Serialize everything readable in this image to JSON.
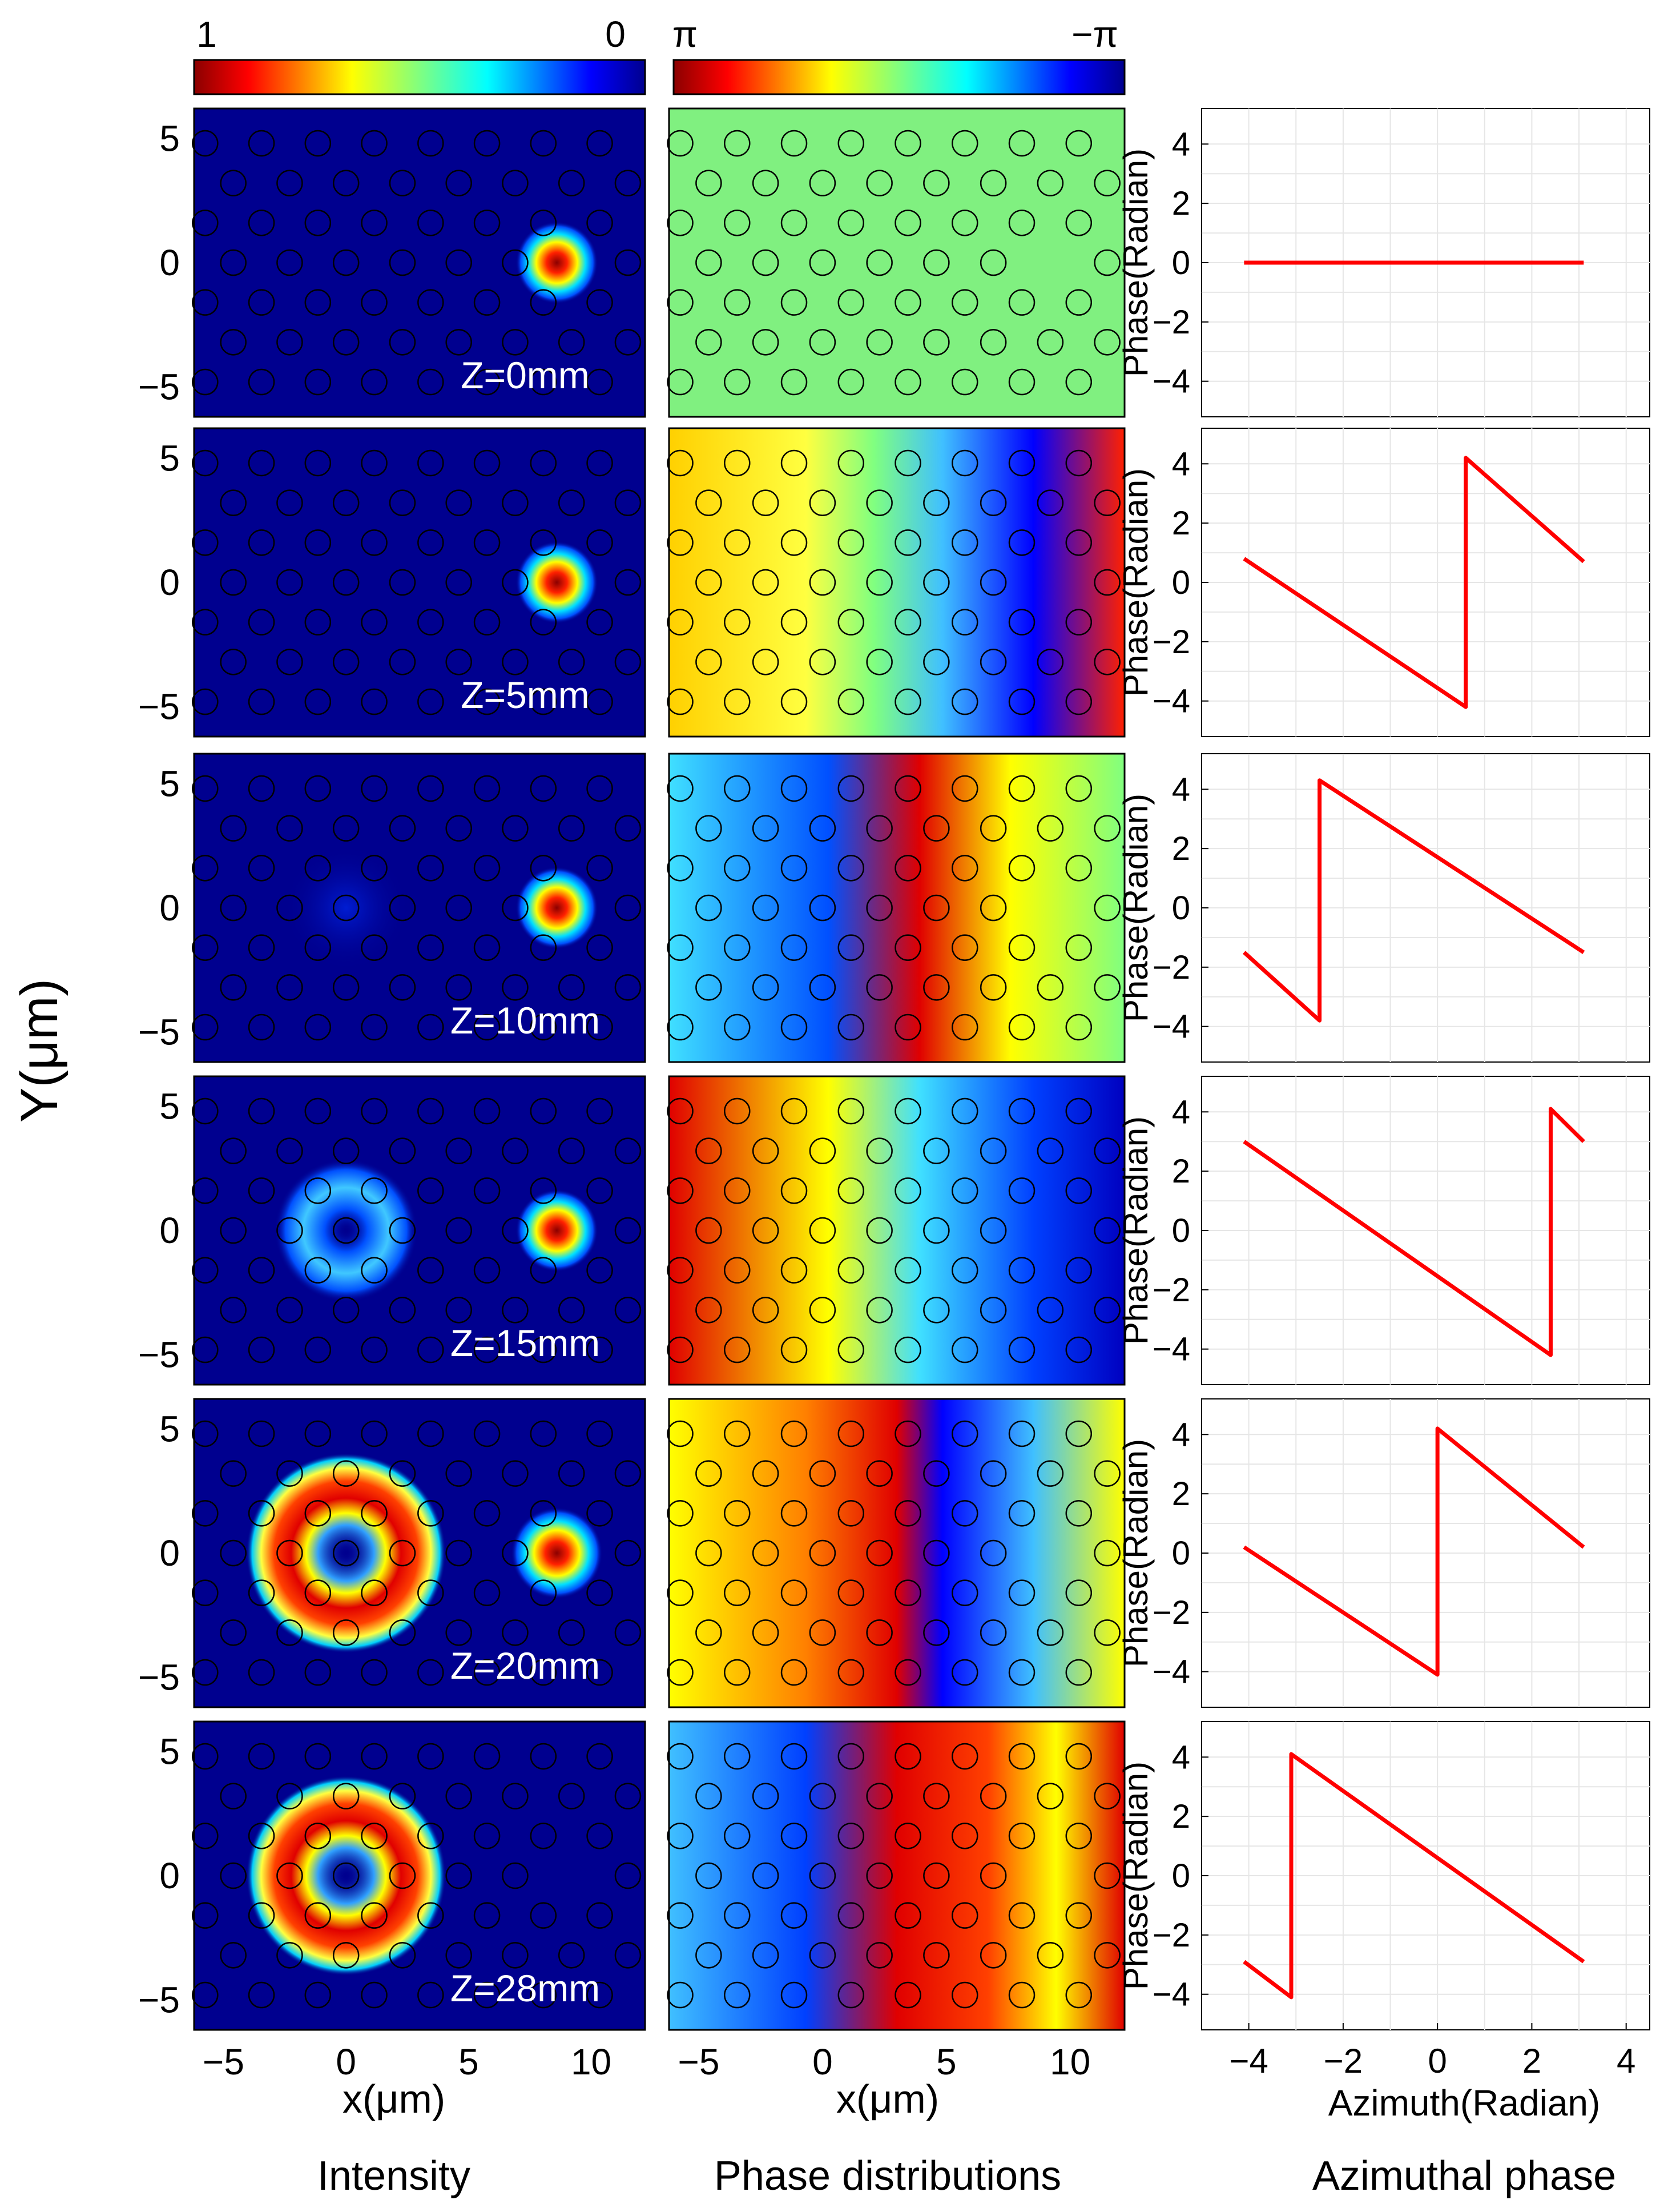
{
  "figure": {
    "y_axis_label": "Y(μm)",
    "colorbars": {
      "intensity": {
        "left_label": "1",
        "right_label": "0"
      },
      "phase": {
        "left_label": "π",
        "right_label": "−π"
      }
    },
    "column_titles": [
      "Intensity",
      "Phase distributions",
      "Azimuthal phase"
    ],
    "x_axis_labels": {
      "intensity": "x(μm)",
      "phase": "x(μm)",
      "azimuthal": "Azimuth(Radian)"
    },
    "row_labels": [
      "Z=0mm",
      "Z=5mm",
      "Z=10mm",
      "Z=15mm",
      "Z=20mm",
      "Z=28mm"
    ],
    "panel_y_ticks": [
      "5",
      "0",
      "−5"
    ],
    "panel_x_ticks": [
      "−5",
      "0",
      "5",
      "10"
    ],
    "azimuthal_y_label": "Phase(Radian)",
    "azimuthal_y_ticks": [
      "4",
      "2",
      "0",
      "−2",
      "−4"
    ],
    "azimuthal_x_ticks": [
      "−4",
      "−2",
      "0",
      "2",
      "4"
    ]
  },
  "chart_data": {
    "type": "line",
    "xlabel": "Azimuth(Radian)",
    "ylabel": "Phase(Radian)",
    "xlim": [
      -5,
      4.5
    ],
    "ylim": [
      -5.2,
      5.2
    ],
    "grid": true,
    "series_color": "#ff0000",
    "series": [
      {
        "x": [
          -4.1,
          3.1
        ],
        "y": [
          0,
          0
        ]
      },
      {
        "x": [
          -4.1,
          0.6,
          0.6,
          3.1
        ],
        "y": [
          0.8,
          -4.2,
          4.2,
          0.7
        ]
      },
      {
        "x": [
          -4.1,
          -2.5,
          -2.5,
          3.1
        ],
        "y": [
          -1.5,
          -3.8,
          4.3,
          -1.5
        ]
      },
      {
        "x": [
          -4.1,
          2.4,
          2.4,
          3.1
        ],
        "y": [
          3.0,
          -4.2,
          4.1,
          3.0
        ]
      },
      {
        "x": [
          -4.1,
          0,
          0,
          3.1
        ],
        "y": [
          0.2,
          -4.1,
          4.2,
          0.2
        ]
      },
      {
        "x": [
          -4.1,
          -3.1,
          -3.1,
          3.1
        ],
        "y": [
          -2.9,
          -4.1,
          4.1,
          -2.9
        ]
      }
    ]
  },
  "colors": {
    "intensity_background": "#00008f",
    "phase_background_row1": "#80f080",
    "line": "#ff0000"
  }
}
